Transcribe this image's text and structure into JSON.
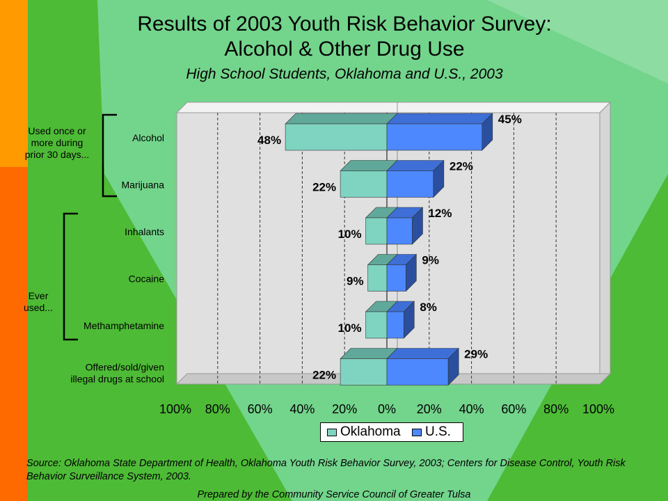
{
  "title_line1": "Results of 2003 Youth Risk Behavior Survey:",
  "title_line2": "Alcohol & Other Drug Use",
  "subtitle": "High School Students, Oklahoma and U.S., 2003",
  "colors": {
    "background": "#4dbb35",
    "oklahoma": "#7fd3c1",
    "us": "#4d88ff",
    "plot_area": "#e0e0e0",
    "left_strip_top": "#ff9a00",
    "left_strip_bottom": "#ff6a00"
  },
  "group_labels": {
    "recent": "Used once or more during prior 30 days...",
    "recent_lines": [
      "Used once or",
      "more during",
      "prior 30 days..."
    ],
    "ever_lines": [
      "Ever",
      "used..."
    ]
  },
  "legend": {
    "oklahoma": "Oklahoma",
    "us": "U.S."
  },
  "source": "Source:  Oklahoma State Department of Health, Oklahoma Youth Risk Behavior Survey, 2003; Centers for Disease Control, Youth Risk Behavior Surveillance System, 2003.",
  "prepared_by": "Prepared by the Community Service Council of Greater Tulsa",
  "chart_data": {
    "type": "bar",
    "orientation": "horizontal-diverging",
    "title": "Results of 2003 Youth Risk Behavior Survey: Alcohol & Other Drug Use",
    "subtitle": "High School Students, Oklahoma and U.S., 2003",
    "categories": [
      [
        "Alcohol"
      ],
      [
        "Marijuana"
      ],
      [
        "Inhalants"
      ],
      [
        "Cocaine"
      ],
      [
        "Methamphetamine"
      ],
      [
        "Offered/sold/given",
        "illegal drugs at school"
      ]
    ],
    "series": [
      {
        "name": "Oklahoma",
        "values": [
          48,
          22,
          10,
          9,
          10,
          22
        ],
        "labels": [
          "48%",
          "22%",
          "10%",
          "9%",
          "10%",
          "22%"
        ]
      },
      {
        "name": "U.S.",
        "values": [
          45,
          22,
          12,
          9,
          8,
          29
        ],
        "labels": [
          "45%",
          "22%",
          "12%",
          "9%",
          "8%",
          "29%"
        ]
      }
    ],
    "x_ticks": [
      "100%",
      "80%",
      "60%",
      "40%",
      "20%",
      "0%",
      "20%",
      "40%",
      "60%",
      "80%",
      "100%"
    ],
    "xlim": [
      -100,
      100
    ],
    "grid": "vertical dashed",
    "legend_position": "bottom-center"
  }
}
